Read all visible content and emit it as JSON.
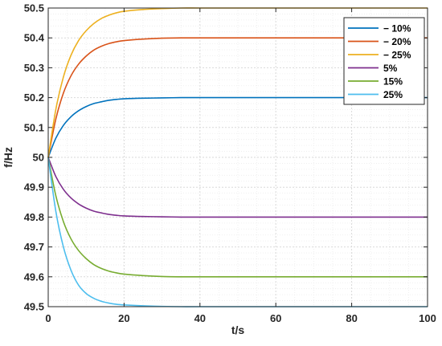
{
  "chart_data": {
    "type": "line",
    "xlabel": "t/s",
    "ylabel": "f/Hz",
    "xlim": [
      0,
      100
    ],
    "ylim": [
      49.5,
      50.5
    ],
    "x_ticks": [
      "0",
      "20",
      "40",
      "60",
      "80",
      "100"
    ],
    "y_ticks": [
      "49.5",
      "49.6",
      "49.7",
      "49.8",
      "49.9",
      "50",
      "50.1",
      "50.2",
      "50.3",
      "50.4",
      "50.5"
    ],
    "grid": true,
    "legend_position": "top-right",
    "x": [
      0,
      2,
      4,
      6,
      8,
      10,
      12,
      14,
      16,
      18,
      20,
      25,
      30,
      35,
      40,
      50,
      60,
      70,
      80,
      90,
      100
    ],
    "series": [
      {
        "name": "− 10%",
        "color": "#0072BD",
        "values": [
          50.0,
          50.064,
          50.107,
          50.136,
          50.156,
          50.17,
          50.18,
          50.186,
          50.191,
          50.194,
          50.196,
          50.198,
          50.199,
          50.2,
          50.2,
          50.2,
          50.2,
          50.2,
          50.2,
          50.2,
          50.2
        ]
      },
      {
        "name": "− 20%",
        "color": "#D95319",
        "values": [
          50.0,
          50.128,
          50.215,
          50.273,
          50.312,
          50.339,
          50.359,
          50.372,
          50.381,
          50.387,
          50.391,
          50.396,
          50.399,
          50.4,
          50.4,
          50.4,
          50.4,
          50.4,
          50.4,
          50.4,
          50.4
        ]
      },
      {
        "name": "− 25%",
        "color": "#EDB120",
        "values": [
          50.0,
          50.16,
          50.269,
          50.342,
          50.391,
          50.424,
          50.448,
          50.465,
          50.476,
          50.484,
          50.489,
          50.495,
          50.498,
          50.5,
          50.5,
          50.5,
          50.5,
          50.5,
          50.5,
          50.5,
          50.5
        ]
      },
      {
        "name": "5%",
        "color": "#7E2F8E",
        "values": [
          50.0,
          49.936,
          49.893,
          49.864,
          49.844,
          49.83,
          49.82,
          49.814,
          49.809,
          49.806,
          49.804,
          49.802,
          49.801,
          49.8,
          49.8,
          49.8,
          49.8,
          49.8,
          49.8,
          49.8,
          49.8
        ]
      },
      {
        "name": "15%",
        "color": "#77AC30",
        "values": [
          50.0,
          49.872,
          49.785,
          49.727,
          49.688,
          49.661,
          49.641,
          49.628,
          49.619,
          49.613,
          49.609,
          49.604,
          49.601,
          49.6,
          49.6,
          49.6,
          49.6,
          49.6,
          49.6,
          49.6,
          49.6
        ]
      },
      {
        "name": "25%",
        "color": "#4DBEEE",
        "values": [
          50.0,
          49.82,
          49.7,
          49.622,
          49.572,
          49.544,
          49.528,
          49.518,
          49.512,
          49.508,
          49.506,
          49.503,
          49.501,
          49.5,
          49.5,
          49.5,
          49.5,
          49.5,
          49.5,
          49.5,
          49.5
        ]
      }
    ]
  }
}
